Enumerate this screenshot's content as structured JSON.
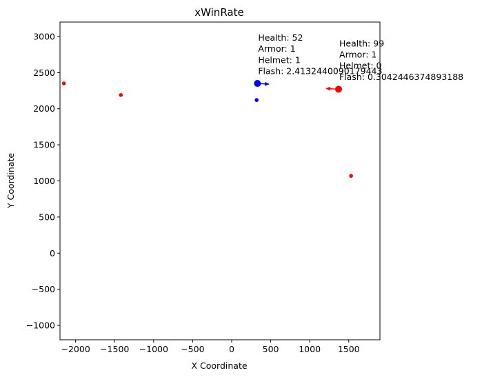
{
  "chart_data": {
    "type": "scatter",
    "title": "xWinRate",
    "xlabel": "X Coordinate",
    "ylabel": "Y Coordinate",
    "xlim": [
      -2200,
      1900
    ],
    "ylim": [
      -1200,
      3200
    ],
    "xticks": [
      -2000,
      -1500,
      -1000,
      -500,
      0,
      500,
      1000,
      1500
    ],
    "yticks": [
      -1000,
      -500,
      0,
      500,
      1000,
      1500,
      2000,
      2500,
      3000
    ],
    "grid": false,
    "colors": {
      "blue": "#0000ff",
      "red": "#ff0000"
    },
    "points": [
      {
        "x": 330,
        "y": 2350,
        "color": "blue",
        "size": "large"
      },
      {
        "x": 320,
        "y": 2120,
        "color": "blue",
        "size": "small"
      },
      {
        "x": 1370,
        "y": 2270,
        "color": "red",
        "size": "large"
      },
      {
        "x": -2150,
        "y": 2350,
        "color": "red",
        "size": "small"
      },
      {
        "x": -1420,
        "y": 2190,
        "color": "red",
        "size": "small"
      },
      {
        "x": 1530,
        "y": 1070,
        "color": "red",
        "size": "small"
      }
    ],
    "arrows": [
      {
        "from": [
          330,
          2350
        ],
        "to": [
          480,
          2340
        ],
        "color": "blue"
      },
      {
        "from": [
          1370,
          2270
        ],
        "to": [
          1210,
          2280
        ],
        "color": "red"
      }
    ],
    "annotations": [
      {
        "x": 330,
        "y": 2350,
        "lines": [
          "Health: 52",
          "Armor: 1",
          "Helmet: 1",
          "Flash: 2.4132440090179443"
        ]
      },
      {
        "x": 1370,
        "y": 2270,
        "lines": [
          "Health: 99",
          "Armor: 1",
          "Helmet: 0",
          "Flash: 0.3042446374893188"
        ]
      }
    ]
  }
}
